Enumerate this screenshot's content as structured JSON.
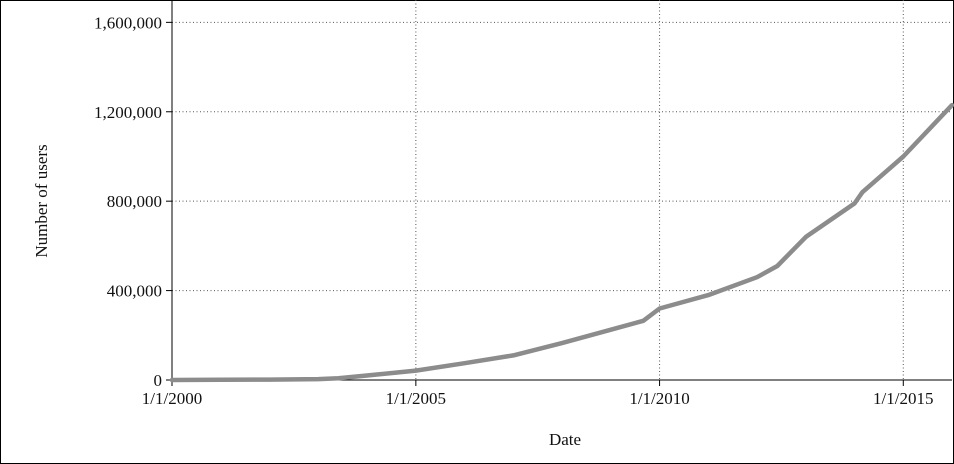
{
  "chart_data": {
    "type": "line",
    "title": "",
    "xlabel": "Date",
    "ylabel": "Number of users",
    "x_scale": "date",
    "xlim": [
      "2000-01-01",
      "2016-01-01"
    ],
    "ylim": [
      0,
      1700000
    ],
    "x_ticks": [
      "2000-01-01",
      "2005-01-01",
      "2010-01-01",
      "2015-01-01"
    ],
    "x_tick_labels": [
      "1/1/2000",
      "1/1/2005",
      "1/1/2010",
      "1/1/2015"
    ],
    "y_ticks": [
      0,
      400000,
      800000,
      1200000,
      1600000
    ],
    "y_tick_labels": [
      "0",
      "400,000",
      "800,000",
      "1,200,000",
      "1,600,000"
    ],
    "grid": true,
    "grid_style": "dotted",
    "legend": "none",
    "series_color": "#8c8c8c",
    "series": [
      {
        "x": [
          "2000-01-01",
          "2001-01-01",
          "2002-01-01",
          "2003-01-01",
          "2003-06-01",
          "2004-01-01",
          "2005-01-01",
          "2006-01-01",
          "2007-01-01",
          "2008-01-01",
          "2009-01-01",
          "2009-09-01",
          "2010-01-01",
          "2011-01-01",
          "2012-01-01",
          "2012-06-01",
          "2013-01-01",
          "2014-01-01",
          "2014-03-01",
          "2015-01-01",
          "2016-01-01"
        ],
        "y": [
          0,
          1000,
          2000,
          4000,
          8000,
          20000,
          42000,
          75000,
          110000,
          165000,
          225000,
          265000,
          320000,
          380000,
          460000,
          510000,
          640000,
          790000,
          840000,
          1000000,
          1230000
        ]
      }
    ]
  }
}
